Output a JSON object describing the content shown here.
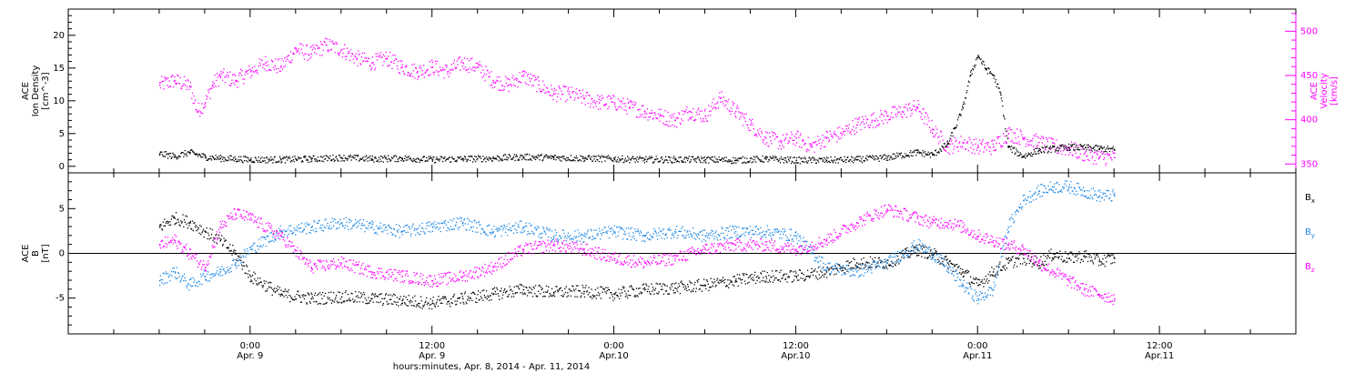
{
  "chart_data": [
    {
      "type": "scatter",
      "panel": "top",
      "left_axis": {
        "label_lines": [
          "ACE",
          "Ion Density",
          "[cm^-3]"
        ],
        "ticks": [
          0,
          5,
          10,
          15,
          20
        ],
        "range": [
          -1,
          24
        ],
        "color": "#000000"
      },
      "right_axis": {
        "label_lines": [
          "ACE",
          "Velocity",
          "[km/s]"
        ],
        "ticks": [
          350,
          400,
          450,
          500
        ],
        "range": [
          340,
          525
        ],
        "color": "#ff00ff"
      },
      "series": [
        {
          "name": "Ion Density",
          "axis": "left",
          "color": "#000000",
          "x": [
            0,
            1,
            2,
            3,
            4,
            5,
            6,
            8,
            10,
            12,
            14,
            16,
            18,
            20,
            22,
            24,
            26,
            28,
            30,
            32,
            34,
            36,
            38,
            40,
            42,
            44,
            46,
            48,
            50,
            51,
            52,
            52.5,
            53,
            53.5,
            54,
            54.5,
            55,
            55.5,
            56,
            57,
            58,
            60,
            62,
            63
          ],
          "y": [
            2.0,
            1.6,
            2.2,
            1.5,
            1.3,
            1.2,
            1.1,
            1.1,
            1.2,
            1.4,
            1.2,
            1.3,
            1.1,
            1.2,
            1.3,
            1.5,
            1.4,
            1.3,
            1.2,
            1.1,
            1.1,
            1.1,
            1.0,
            1.2,
            1.0,
            1.0,
            1.1,
            1.4,
            2.2,
            1.8,
            3.5,
            6.0,
            9.0,
            14.0,
            17.0,
            15.0,
            14.0,
            11.0,
            3.0,
            1.6,
            2.5,
            3.0,
            2.8,
            2.6
          ]
        },
        {
          "name": "Velocity",
          "axis": "right",
          "color": "#ff00ff",
          "x": [
            0,
            1,
            2,
            2.5,
            3,
            3.5,
            4,
            5,
            6,
            7,
            8,
            9,
            10,
            11,
            12,
            13,
            14,
            15,
            16,
            17,
            18,
            19,
            20,
            21,
            22,
            23,
            24,
            25,
            26,
            27,
            28,
            29,
            30,
            31,
            32,
            33,
            34,
            35,
            36,
            37,
            38,
            39,
            40,
            41,
            42,
            43,
            44,
            45,
            46,
            47,
            48,
            49,
            50,
            51,
            52,
            53,
            54,
            55,
            56,
            57,
            58,
            59,
            60,
            61,
            62,
            63
          ],
          "y": [
            440,
            445,
            438,
            410,
            420,
            440,
            450,
            445,
            455,
            465,
            460,
            480,
            475,
            485,
            480,
            470,
            465,
            470,
            460,
            455,
            460,
            455,
            465,
            460,
            445,
            440,
            450,
            440,
            430,
            430,
            425,
            420,
            420,
            415,
            410,
            405,
            400,
            410,
            405,
            425,
            410,
            395,
            380,
            375,
            380,
            370,
            380,
            385,
            395,
            400,
            405,
            410,
            415,
            390,
            370,
            375,
            370,
            370,
            385,
            380,
            375,
            370,
            368,
            362,
            358,
            358
          ]
        }
      ]
    },
    {
      "type": "scatter",
      "panel": "bottom",
      "left_axis": {
        "label_lines": [
          "ACE",
          "B",
          "[nT]"
        ],
        "ticks": [
          -5,
          0,
          5
        ],
        "range": [
          -9,
          9
        ]
      },
      "legend_placement": "right",
      "series": [
        {
          "name": "Bx",
          "label": "B",
          "subscript": "x",
          "color": "#000000",
          "x": [
            0,
            1,
            2,
            3,
            4,
            5,
            6,
            8,
            10,
            12,
            14,
            16,
            18,
            20,
            22,
            24,
            26,
            28,
            30,
            32,
            34,
            36,
            38,
            40,
            42,
            44,
            46,
            48,
            50,
            51,
            52,
            53,
            54,
            55,
            56,
            57,
            58,
            59,
            60,
            61,
            62,
            63
          ],
          "y": [
            3.0,
            4.0,
            3.5,
            2.5,
            1.5,
            0.0,
            -2.5,
            -4.5,
            -5.0,
            -4.8,
            -5.0,
            -5.2,
            -5.5,
            -5.0,
            -4.5,
            -4.0,
            -4.3,
            -4.2,
            -4.5,
            -4.0,
            -3.8,
            -3.5,
            -3.0,
            -2.5,
            -2.5,
            -2.0,
            -1.0,
            -1.0,
            0.5,
            0.0,
            -1.0,
            -2.0,
            -3.5,
            -2.0,
            -1.0,
            -0.5,
            -1.0,
            0.0,
            -0.5,
            -0.2,
            -0.8,
            -0.5
          ]
        },
        {
          "name": "By",
          "label": "B",
          "subscript": "y",
          "color": "#1e88e5",
          "x": [
            0,
            1,
            2,
            3,
            4,
            5,
            6,
            8,
            10,
            12,
            14,
            16,
            18,
            20,
            22,
            24,
            26,
            28,
            30,
            32,
            34,
            36,
            38,
            40,
            42,
            44,
            46,
            48,
            50,
            51,
            52,
            53,
            54,
            55,
            56,
            57,
            58,
            59,
            60,
            61,
            62,
            63
          ],
          "y": [
            -3.0,
            -2.0,
            -3.5,
            -2.5,
            -2.0,
            -1.0,
            0.5,
            2.5,
            3.0,
            3.5,
            3.0,
            2.5,
            3.0,
            3.5,
            2.5,
            3.0,
            2.0,
            2.0,
            2.5,
            2.0,
            2.5,
            2.0,
            2.5,
            2.5,
            2.0,
            -1.5,
            -2.0,
            -1.0,
            1.0,
            0.0,
            -1.5,
            -3.5,
            -5.0,
            -4.0,
            3.0,
            6.0,
            7.0,
            7.5,
            7.5,
            7.0,
            6.5,
            6.5
          ]
        },
        {
          "name": "Bz",
          "label": "B",
          "subscript": "z",
          "color": "#ff00ff",
          "x": [
            0,
            1,
            2,
            3,
            4,
            5,
            6,
            8,
            10,
            12,
            14,
            16,
            18,
            20,
            22,
            24,
            26,
            28,
            30,
            32,
            34,
            36,
            38,
            40,
            42,
            44,
            46,
            48,
            50,
            51,
            52,
            53,
            54,
            55,
            56,
            57,
            58,
            59,
            60,
            61,
            62,
            63
          ],
          "y": [
            1.0,
            1.5,
            0.0,
            -1.5,
            3.0,
            4.5,
            4.0,
            2.0,
            -1.5,
            -1.0,
            -2.0,
            -2.5,
            -3.0,
            -2.5,
            -1.5,
            0.5,
            1.0,
            0.5,
            -0.5,
            -1.0,
            -0.5,
            0.5,
            1.0,
            1.0,
            0.5,
            1.5,
            3.5,
            5.0,
            4.0,
            3.5,
            3.5,
            3.0,
            2.0,
            1.5,
            1.0,
            0.5,
            -1.0,
            -2.0,
            -3.0,
            -4.0,
            -4.5,
            -5.0
          ]
        }
      ]
    }
  ],
  "x_axis": {
    "range_hours": [
      -6,
      75
    ],
    "major_ticks": [
      {
        "hour": 6,
        "line1": "0:00",
        "line2": "Apr. 9"
      },
      {
        "hour": 18,
        "line1": "12:00",
        "line2": "Apr. 9"
      },
      {
        "hour": 30,
        "line1": "0:00",
        "line2": "Apr.10"
      },
      {
        "hour": 42,
        "line1": "12:00",
        "line2": "Apr.10"
      },
      {
        "hour": 54,
        "line1": "0:00",
        "line2": "Apr.11"
      },
      {
        "hour": 66,
        "line1": "12:00",
        "line2": "Apr.11"
      }
    ],
    "title": "hours:minutes, Apr.  8, 2014 - Apr. 11, 2014"
  }
}
